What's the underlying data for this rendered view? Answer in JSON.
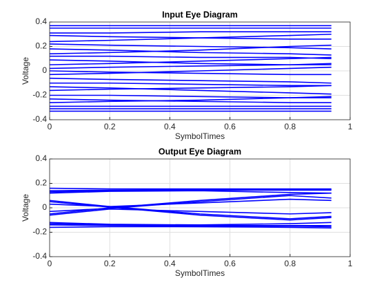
{
  "chart_data": [
    {
      "type": "line",
      "title": "Input Eye Diagram",
      "xlabel": "SymbolTimes",
      "ylabel": "Voltage",
      "x": [
        0,
        0.2,
        0.5,
        0.8,
        0.9375
      ],
      "xlim": [
        0,
        1
      ],
      "xticks": [
        0,
        0.2,
        0.4,
        0.6,
        0.8,
        1
      ],
      "ylim": [
        -0.4,
        0.4
      ],
      "yticks": [
        -0.4,
        -0.2,
        0,
        0.2,
        0.4
      ],
      "grid": true,
      "series": [
        {
          "color": "#0000ff",
          "values": [
            0.37,
            0.37,
            0.37,
            0.37,
            0.37
          ]
        },
        {
          "color": "#0000ff",
          "values": [
            0.35,
            0.35,
            0.35,
            0.35,
            0.35
          ]
        },
        {
          "color": "#0000ff",
          "values": [
            0.31,
            0.31,
            0.32,
            0.32,
            0.32
          ]
        },
        {
          "color": "#0000ff",
          "values": [
            0.29,
            0.28,
            0.27,
            0.26,
            0.26
          ]
        },
        {
          "color": "#0000ff",
          "values": [
            0.24,
            0.25,
            0.27,
            0.29,
            0.3
          ]
        },
        {
          "color": "#0000ff",
          "values": [
            0.22,
            0.21,
            0.2,
            0.19,
            0.18
          ]
        },
        {
          "color": "#0000ff",
          "values": [
            0.18,
            0.17,
            0.15,
            0.14,
            0.13
          ]
        },
        {
          "color": "#0000ff",
          "values": [
            0.14,
            0.15,
            0.17,
            0.2,
            0.21
          ]
        },
        {
          "color": "#0000ff",
          "values": [
            0.12,
            0.12,
            0.11,
            0.11,
            0.1
          ]
        },
        {
          "color": "#0000ff",
          "values": [
            0.09,
            0.08,
            0.06,
            0.05,
            0.05
          ]
        },
        {
          "color": "#0000ff",
          "values": [
            0.05,
            0.06,
            0.08,
            0.1,
            0.11
          ]
        },
        {
          "color": "#0000ff",
          "values": [
            0.02,
            0.03,
            0.04,
            0.05,
            0.06
          ]
        },
        {
          "color": "#0000ff",
          "values": [
            0.0,
            -0.01,
            -0.02,
            -0.03,
            -0.03
          ]
        },
        {
          "color": "#0000ff",
          "values": [
            -0.03,
            -0.02,
            0.0,
            0.02,
            0.03
          ]
        },
        {
          "color": "#0000ff",
          "values": [
            -0.06,
            -0.07,
            -0.08,
            -0.09,
            -0.1
          ]
        },
        {
          "color": "#0000ff",
          "values": [
            -0.1,
            -0.1,
            -0.11,
            -0.12,
            -0.12
          ]
        },
        {
          "color": "#0000ff",
          "values": [
            -0.13,
            -0.14,
            -0.16,
            -0.18,
            -0.19
          ]
        },
        {
          "color": "#0000ff",
          "values": [
            -0.16,
            -0.15,
            -0.14,
            -0.13,
            -0.12
          ]
        },
        {
          "color": "#0000ff",
          "values": [
            -0.2,
            -0.2,
            -0.21,
            -0.22,
            -0.22
          ]
        },
        {
          "color": "#0000ff",
          "values": [
            -0.23,
            -0.24,
            -0.25,
            -0.26,
            -0.26
          ]
        },
        {
          "color": "#0000ff",
          "values": [
            -0.26,
            -0.25,
            -0.24,
            -0.22,
            -0.21
          ]
        },
        {
          "color": "#0000ff",
          "values": [
            -0.29,
            -0.29,
            -0.29,
            -0.29,
            -0.29
          ]
        },
        {
          "color": "#0000ff",
          "values": [
            -0.31,
            -0.31,
            -0.31,
            -0.31,
            -0.31
          ]
        },
        {
          "color": "#0000ff",
          "values": [
            -0.33,
            -0.33,
            -0.33,
            -0.33,
            -0.33
          ]
        }
      ]
    },
    {
      "type": "line",
      "title": "Output Eye Diagram",
      "xlabel": "SymbolTimes",
      "ylabel": "Voltage",
      "x": [
        0,
        0.2,
        0.5,
        0.8,
        0.9375
      ],
      "xlim": [
        0,
        1
      ],
      "xticks": [
        0,
        0.2,
        0.4,
        0.6,
        0.8,
        1
      ],
      "ylim": [
        -0.4,
        0.4
      ],
      "yticks": [
        -0.4,
        -0.2,
        0,
        0.2,
        0.4
      ],
      "grid": true,
      "series": [
        {
          "color": "#0000ff",
          "values": [
            0.16,
            0.155,
            0.155,
            0.155,
            0.155
          ]
        },
        {
          "color": "#0000ff",
          "values": [
            0.14,
            0.145,
            0.15,
            0.15,
            0.15
          ]
        },
        {
          "color": "#0000ff",
          "values": [
            0.13,
            0.14,
            0.145,
            0.145,
            0.145
          ]
        },
        {
          "color": "#0000ff",
          "values": [
            0.12,
            0.135,
            0.14,
            0.125,
            0.12
          ]
        },
        {
          "color": "#0000ff",
          "values": [
            0.06,
            0.01,
            -0.05,
            -0.09,
            -0.07
          ]
        },
        {
          "color": "#0000ff",
          "values": [
            0.05,
            0.005,
            -0.06,
            -0.1,
            -0.08
          ]
        },
        {
          "color": "#0000ff",
          "values": [
            0.03,
            0.01,
            0.04,
            0.07,
            0.06
          ]
        },
        {
          "color": "#0000ff",
          "values": [
            -0.03,
            -0.005,
            0.05,
            0.1,
            0.08
          ]
        },
        {
          "color": "#0000ff",
          "values": [
            -0.05,
            0.0,
            0.06,
            0.11,
            0.12
          ]
        },
        {
          "color": "#0000ff",
          "values": [
            -0.06,
            -0.01,
            -0.03,
            -0.05,
            -0.04
          ]
        },
        {
          "color": "#0000ff",
          "values": [
            -0.12,
            -0.135,
            -0.14,
            -0.13,
            -0.12
          ]
        },
        {
          "color": "#0000ff",
          "values": [
            -0.13,
            -0.14,
            -0.145,
            -0.145,
            -0.145
          ]
        },
        {
          "color": "#0000ff",
          "values": [
            -0.14,
            -0.145,
            -0.15,
            -0.15,
            -0.155
          ]
        },
        {
          "color": "#0000ff",
          "values": [
            -0.16,
            -0.155,
            -0.155,
            -0.16,
            -0.165
          ]
        }
      ]
    }
  ]
}
